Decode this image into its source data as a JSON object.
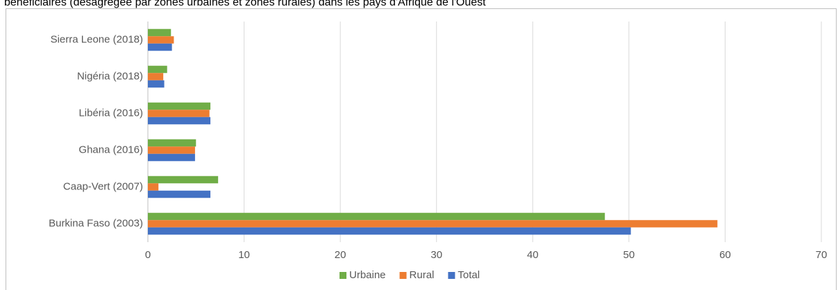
{
  "chart_data": {
    "type": "bar",
    "orientation": "horizontal",
    "title": "bénéficiaires (désagrégée par zones urbaines et zones rurales) dans les pays d'Afrique de l'Ouest",
    "categories": [
      "Burkina Faso (2003)",
      "Caap-Vert (2007)",
      "Ghana (2016)",
      "Libéria (2016)",
      "Nigéria (2018)",
      "Sierra Leone (2018)"
    ],
    "series": [
      {
        "name": "Urbaine",
        "color": "#70ad47",
        "values": [
          47.5,
          7.3,
          5.0,
          6.5,
          2.0,
          2.4
        ]
      },
      {
        "name": "Rural",
        "color": "#ed7d31",
        "values": [
          59.2,
          1.1,
          4.9,
          6.4,
          1.6,
          2.7
        ]
      },
      {
        "name": "Total",
        "color": "#4472c4",
        "values": [
          50.2,
          6.5,
          4.9,
          6.5,
          1.7,
          2.5
        ]
      }
    ],
    "xlim": [
      0,
      70
    ],
    "xticks": [
      0,
      10,
      20,
      30,
      40,
      50,
      60,
      70
    ],
    "grid": true,
    "legend": "bottom"
  }
}
